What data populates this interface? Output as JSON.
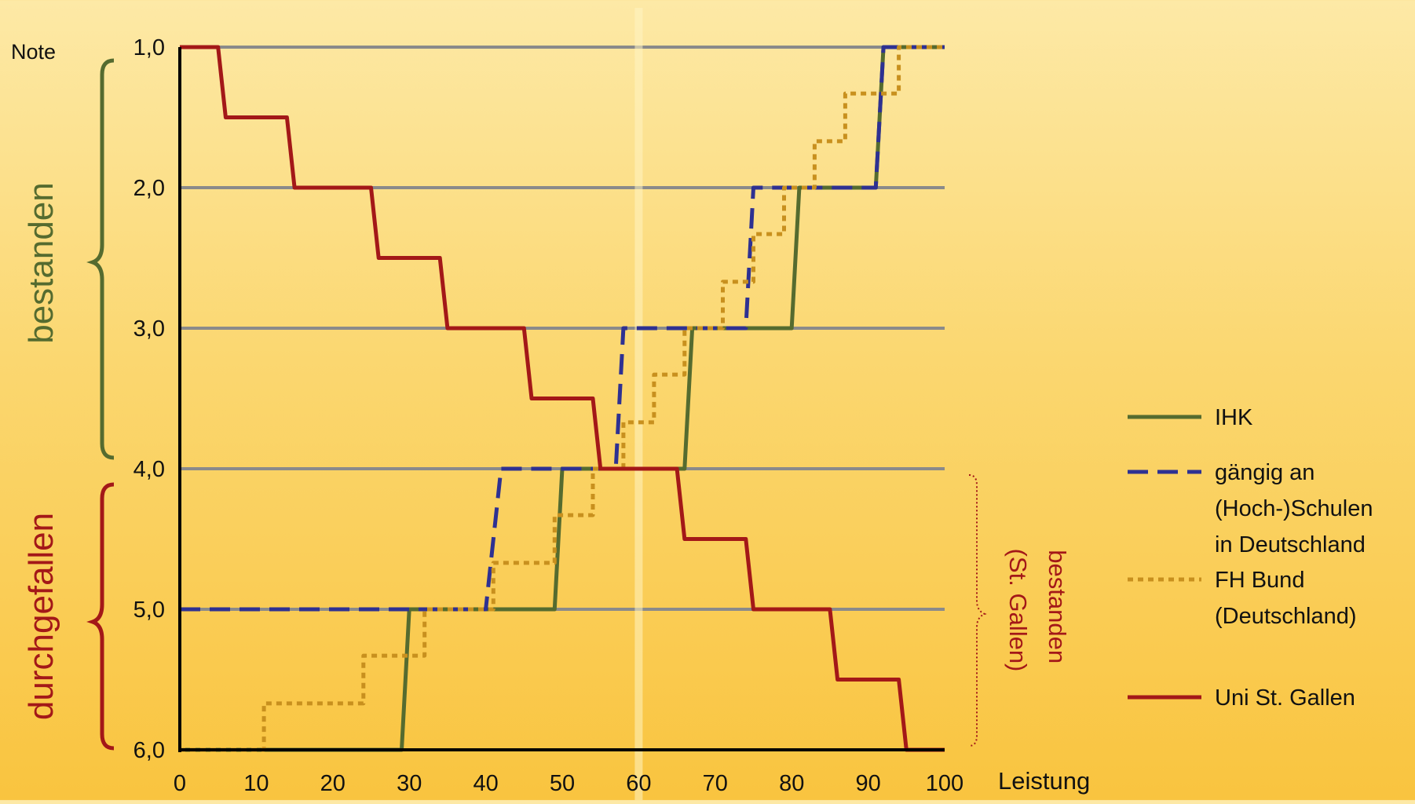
{
  "chart_data": {
    "type": "line",
    "y_axis_label": "Note",
    "x_axis_label": "Leistung",
    "x_ticks": [
      "0",
      "10",
      "20",
      "30",
      "40",
      "50",
      "60",
      "70",
      "80",
      "90",
      "100"
    ],
    "y_ticks": [
      "1,0",
      "2,0",
      "3,0",
      "4,0",
      "5,0",
      "6,0"
    ],
    "xlim": [
      0,
      100
    ],
    "ylim": [
      1.0,
      6.0
    ],
    "y_inverted": true,
    "grid": "horizontal",
    "vertical_marker_x": 60,
    "bracket_labels": {
      "passed": "bestanden",
      "failed": "durchgefallen",
      "passed_stgallen": "bestanden\n(St. Gallen)"
    },
    "legend_position": "right",
    "series": [
      {
        "name": "IHK",
        "color": "#556b2f",
        "dash": "solid",
        "points": [
          [
            0,
            6.0
          ],
          [
            29,
            6.0
          ],
          [
            30,
            5.0
          ],
          [
            49,
            5.0
          ],
          [
            50,
            4.0
          ],
          [
            66,
            4.0
          ],
          [
            67,
            3.0
          ],
          [
            80,
            3.0
          ],
          [
            81,
            2.0
          ],
          [
            91,
            2.0
          ],
          [
            92,
            1.0
          ],
          [
            100,
            1.0
          ]
        ]
      },
      {
        "name": "gängig an\n(Hoch-)Schulen\nin Deutschland",
        "color": "#2e3192",
        "dash": "dashed",
        "points": [
          [
            0,
            5.0
          ],
          [
            40,
            5.0
          ],
          [
            42,
            4.0
          ],
          [
            57,
            4.0
          ],
          [
            58,
            3.0
          ],
          [
            74,
            3.0
          ],
          [
            75,
            2.0
          ],
          [
            91,
            2.0
          ],
          [
            92,
            1.0
          ],
          [
            100,
            1.0
          ]
        ]
      },
      {
        "name": "FH Bund\n(Deutschland)",
        "color": "#c8901e",
        "dash": "dotted",
        "points": [
          [
            0,
            6.0
          ],
          [
            11,
            6.0
          ],
          [
            11,
            5.67
          ],
          [
            24,
            5.67
          ],
          [
            24,
            5.33
          ],
          [
            32,
            5.33
          ],
          [
            32,
            5.0
          ],
          [
            41,
            5.0
          ],
          [
            41,
            4.67
          ],
          [
            49,
            4.67
          ],
          [
            49,
            4.33
          ],
          [
            54,
            4.33
          ],
          [
            54,
            4.0
          ],
          [
            58,
            4.0
          ],
          [
            58,
            3.67
          ],
          [
            62,
            3.67
          ],
          [
            62,
            3.33
          ],
          [
            66,
            3.33
          ],
          [
            66,
            3.0
          ],
          [
            71,
            3.0
          ],
          [
            71,
            2.67
          ],
          [
            75,
            2.67
          ],
          [
            75,
            2.33
          ],
          [
            79,
            2.33
          ],
          [
            79,
            2.0
          ],
          [
            83,
            2.0
          ],
          [
            83,
            1.67
          ],
          [
            87,
            1.67
          ],
          [
            87,
            1.33
          ],
          [
            94,
            1.33
          ],
          [
            94,
            1.0
          ],
          [
            100,
            1.0
          ]
        ]
      },
      {
        "name": "Uni  St. Gallen",
        "color": "#a31818",
        "dash": "solid",
        "points": [
          [
            0,
            1.0
          ],
          [
            5,
            1.0
          ],
          [
            6,
            1.5
          ],
          [
            14,
            1.5
          ],
          [
            15,
            2.0
          ],
          [
            25,
            2.0
          ],
          [
            26,
            2.5
          ],
          [
            34,
            2.5
          ],
          [
            35,
            3.0
          ],
          [
            45,
            3.0
          ],
          [
            46,
            3.5
          ],
          [
            54,
            3.5
          ],
          [
            55,
            4.0
          ],
          [
            65,
            4.0
          ],
          [
            66,
            4.5
          ],
          [
            74,
            4.5
          ],
          [
            75,
            5.0
          ],
          [
            85,
            5.0
          ],
          [
            86,
            5.5
          ],
          [
            94,
            5.5
          ],
          [
            95,
            6.0
          ],
          [
            100,
            6.0
          ]
        ]
      }
    ]
  }
}
